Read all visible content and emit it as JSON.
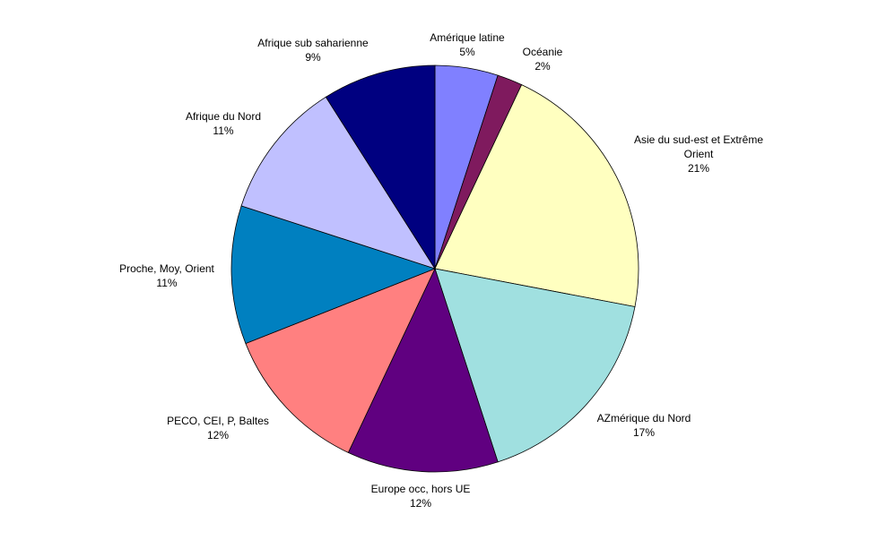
{
  "chart_data": {
    "type": "pie",
    "categories": [
      "Amérique latine",
      "Océanie",
      "Asie du sud-est et Extrême Orient",
      "AZmérique du Nord",
      "Europe occ, hors UE",
      "PECO, CEI, P, Baltes",
      "Proche, Moy, Orient",
      "Afrique du Nord",
      "Afrique sub saharienne"
    ],
    "values": [
      5,
      2,
      21,
      17,
      12,
      12,
      11,
      11,
      9
    ],
    "value_labels": [
      "5%",
      "2%",
      "21%",
      "17%",
      "12%",
      "12%",
      "11%",
      "11%",
      "9%"
    ],
    "colors": [
      "#8080ff",
      "#7f1a5e",
      "#ffffc0",
      "#a0e0e0",
      "#600080",
      "#ff8080",
      "#0080c0",
      "#c0c0ff",
      "#000080"
    ]
  }
}
